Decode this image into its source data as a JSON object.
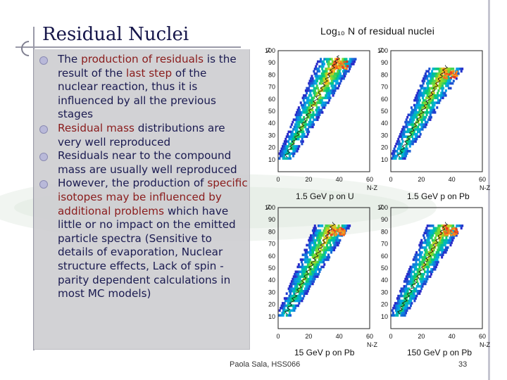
{
  "slide": {
    "title": "Residual Nuclei",
    "bullets": [
      {
        "parts": [
          {
            "t": "The "
          },
          {
            "t": "production of residuals",
            "hl": true
          },
          {
            "t": " is the result of the "
          },
          {
            "t": "last step",
            "hl": true
          },
          {
            "t": " of the nuclear reaction, thus it is influenced by all the previous stages"
          }
        ]
      },
      {
        "parts": [
          {
            "t": "Residual mass",
            "hl": true
          },
          {
            "t": " distributions are very well reproduced"
          }
        ]
      },
      {
        "parts": [
          {
            "t": "Residuals near to the compound mass are usually well reproduced"
          }
        ]
      },
      {
        "parts": [
          {
            "t": "However, the production of "
          },
          {
            "t": "specific isotopes may be influenced by additional problems",
            "hl": true
          },
          {
            "t": " which have little or no impact on the emitted particle spectra (Sensitive to details of evaporation, Nuclear structure effects, Lack of spin -parity dependent calculations in most MC models)"
          }
        ]
      }
    ],
    "plots_title": "Log₁₀ N of residual nuclei",
    "footer_author": "Paola Sala, HSS066",
    "page_number": "33",
    "colors": {
      "title": "#16164a",
      "highlight": "#8a1c1c",
      "textbox": "#cfcfd2"
    }
  },
  "chart_data": [
    {
      "type": "heatmap",
      "caption": "1.5 GeV p on U",
      "xlabel": "N-Z",
      "ylabel": "Z",
      "xlim": [
        0,
        60
      ],
      "ylim": [
        0,
        100
      ],
      "x_ticks": [
        0,
        20,
        40,
        60
      ],
      "y_ticks": [
        10,
        20,
        30,
        40,
        50,
        60,
        70,
        80,
        90,
        100
      ]
    },
    {
      "type": "heatmap",
      "caption": "1.5 GeV p on Pb",
      "xlabel": "N-Z",
      "ylabel": "Z",
      "xlim": [
        0,
        60
      ],
      "ylim": [
        0,
        100
      ],
      "x_ticks": [
        0,
        20,
        40,
        60
      ],
      "y_ticks": [
        10,
        20,
        30,
        40,
        50,
        60,
        70,
        80,
        90,
        100
      ]
    },
    {
      "type": "heatmap",
      "caption": "15 GeV p on Pb",
      "xlabel": "N-Z",
      "ylabel": "Z",
      "xlim": [
        0,
        60
      ],
      "ylim": [
        0,
        100
      ],
      "x_ticks": [
        0,
        20,
        40,
        60
      ],
      "y_ticks": [
        10,
        20,
        30,
        40,
        50,
        60,
        70,
        80,
        90,
        100
      ]
    },
    {
      "type": "heatmap",
      "caption": "150 GeV p on Pb",
      "xlabel": "N-Z",
      "ylabel": "Z",
      "xlim": [
        0,
        60
      ],
      "ylim": [
        0,
        100
      ],
      "x_ticks": [
        0,
        20,
        40,
        60
      ],
      "y_ticks": [
        10,
        20,
        30,
        40,
        50,
        60,
        70,
        80,
        90,
        100
      ]
    }
  ]
}
